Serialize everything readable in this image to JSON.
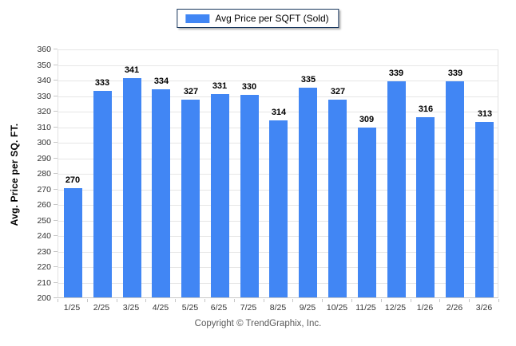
{
  "legend": {
    "label": "Avg Price per SQFT (Sold)"
  },
  "footer": {
    "copyright": "Copyright © TrendGraphix, Inc."
  },
  "chart_data": {
    "type": "bar",
    "title": "",
    "series_name": "Avg Price per SQFT (Sold)",
    "categories": [
      "1/25",
      "2/25",
      "3/25",
      "4/25",
      "5/25",
      "6/25",
      "7/25",
      "8/25",
      "9/25",
      "10/25",
      "11/25",
      "12/25",
      "1/26",
      "2/26",
      "3/26"
    ],
    "values": [
      270,
      333,
      341,
      334,
      327,
      331,
      330,
      314,
      335,
      327,
      309,
      339,
      316,
      339,
      313
    ],
    "xlabel": "",
    "ylabel": "Avg. Price per SQ. FT.",
    "ylim": [
      200,
      360
    ],
    "ytick_step": 10,
    "ytick_labels": [
      "200",
      "210",
      "220",
      "230",
      "240",
      "250",
      "260",
      "270",
      "280",
      "290",
      "300",
      "310",
      "320",
      "330",
      "340",
      "350",
      "360"
    ],
    "grid": "horizontal",
    "legend_position": "top-center",
    "bar_color": "#4186f4",
    "data_labels": true
  }
}
